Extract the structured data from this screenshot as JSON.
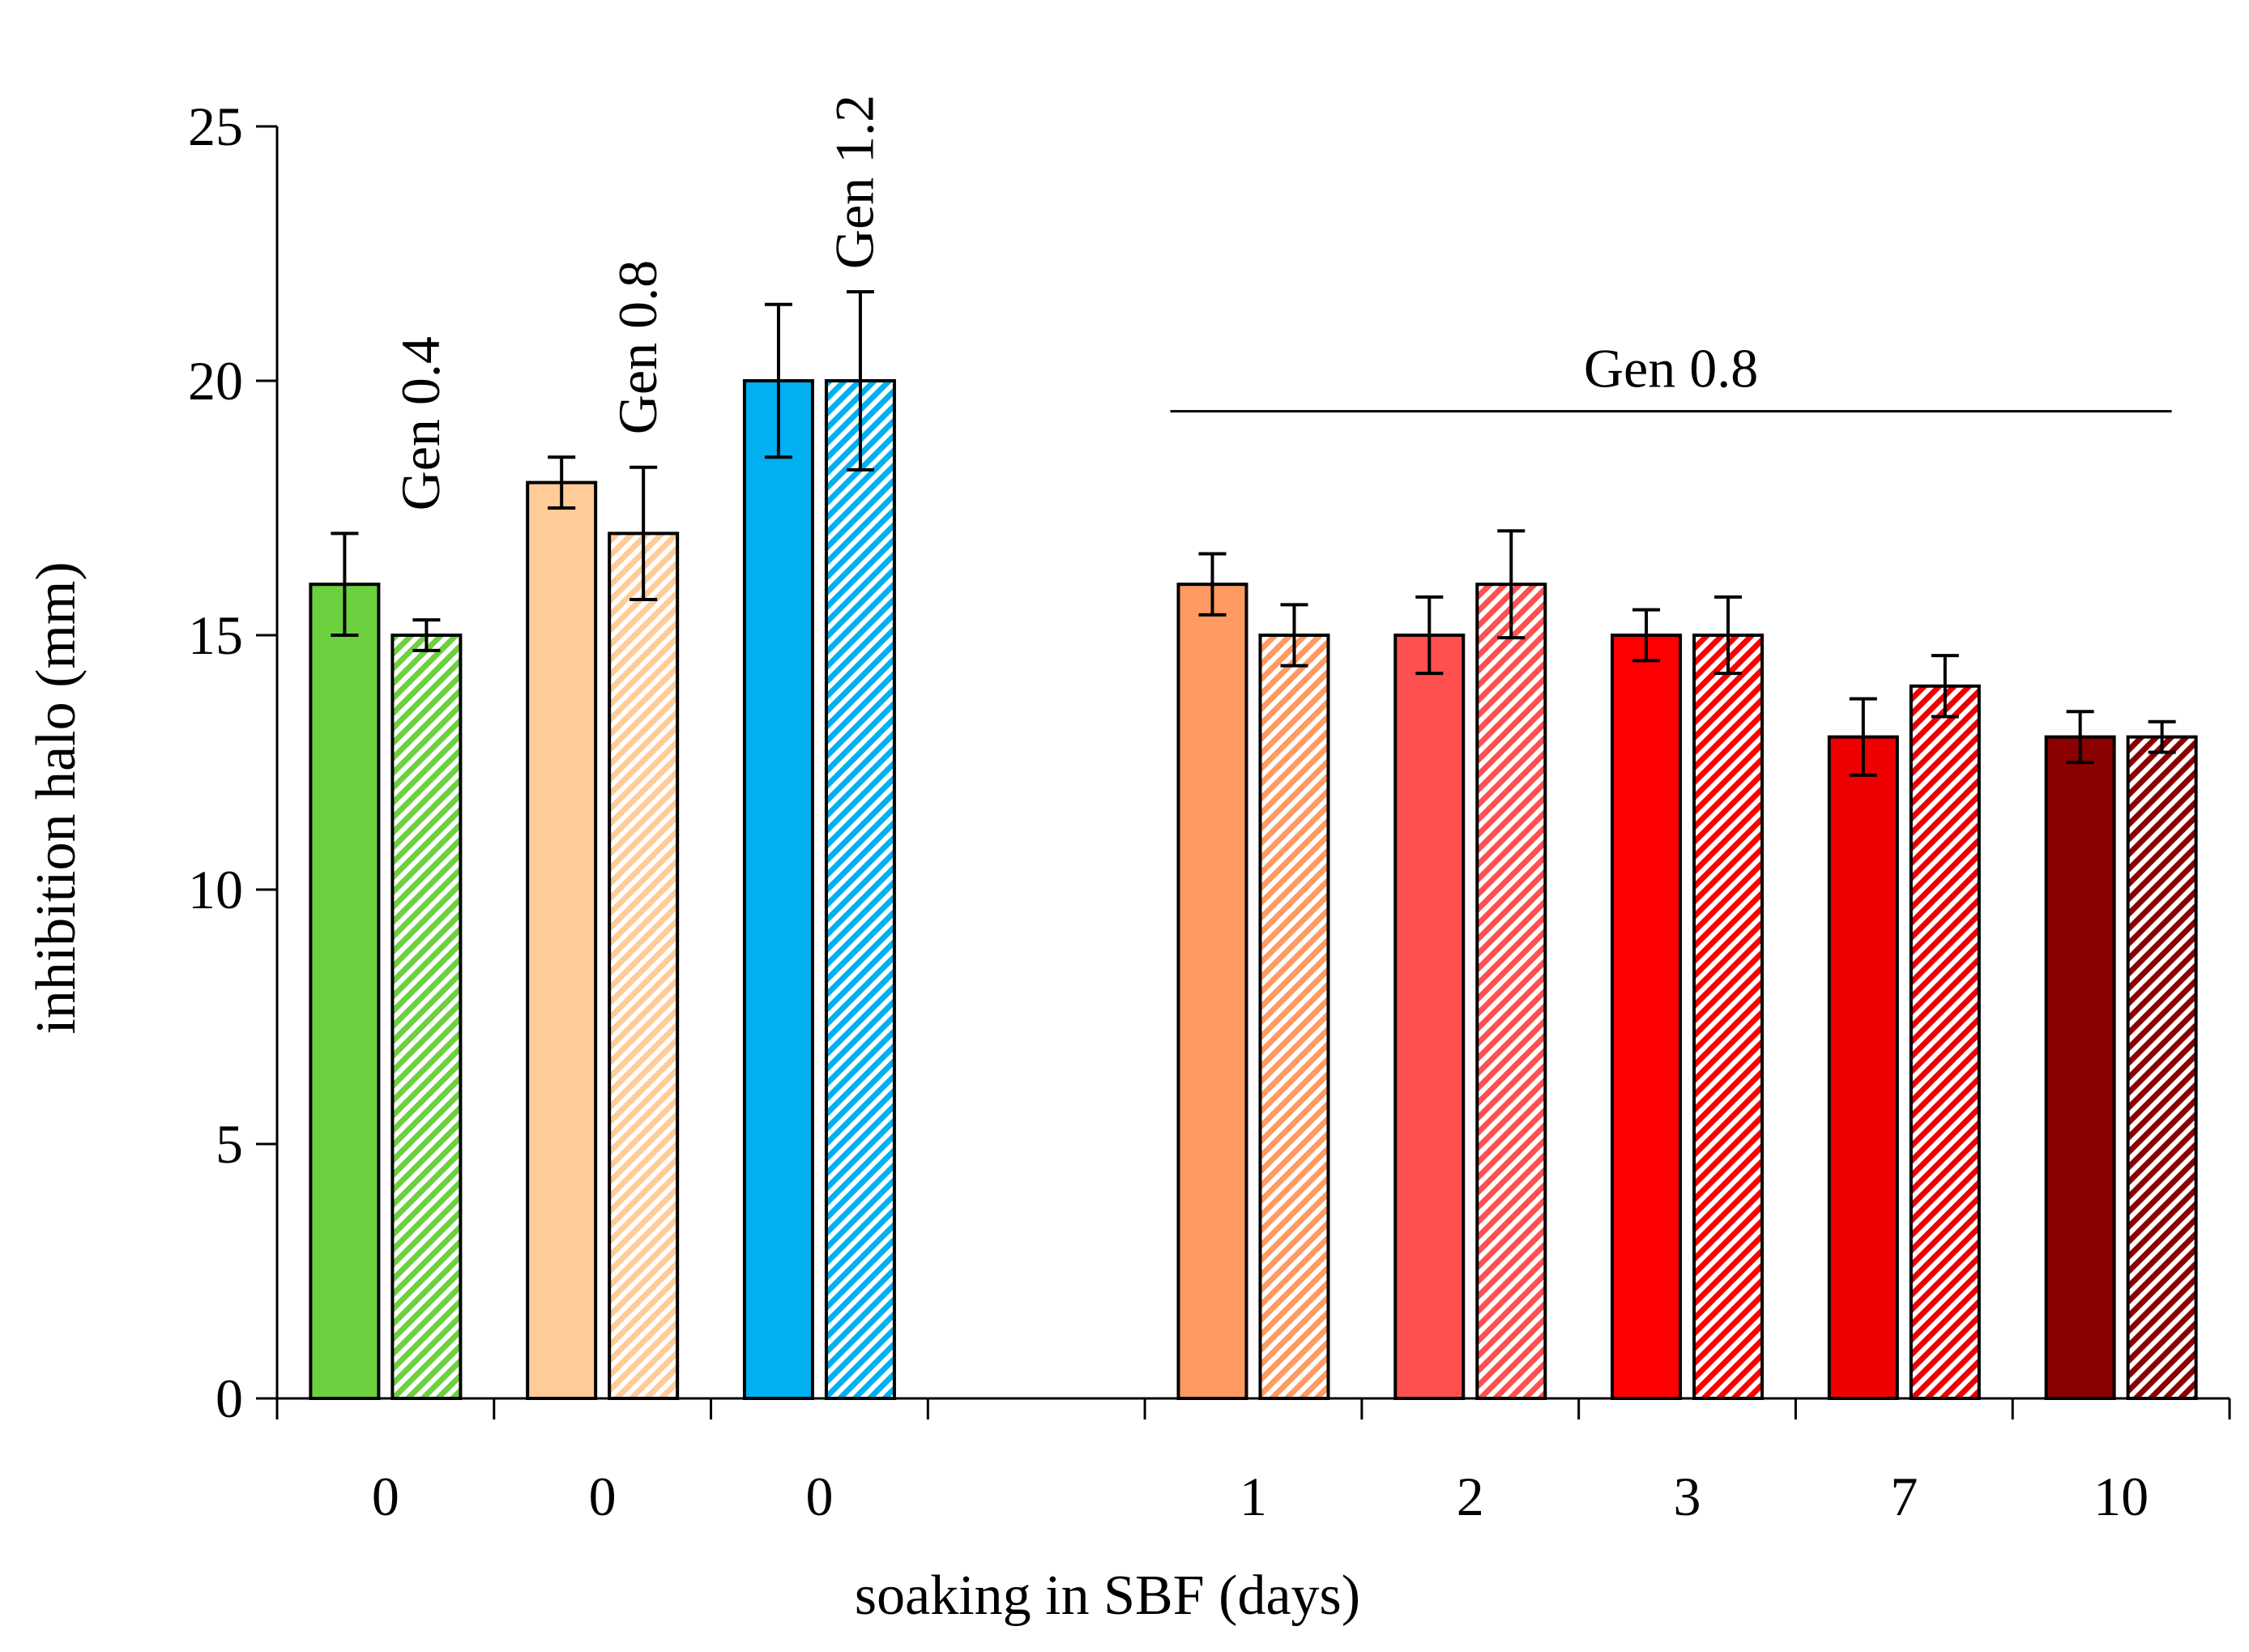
{
  "chart_data": {
    "type": "bar",
    "xlabel": "soaking in SBF (days)",
    "ylabel": "inhibition halo (mm)",
    "ylim": [
      0,
      25
    ],
    "yticks": [
      0,
      5,
      10,
      15,
      20,
      25
    ],
    "bar_fill_styles": [
      "solid",
      "hatched"
    ],
    "categories": [
      "0",
      "0",
      "0",
      "",
      "1",
      "2",
      "3",
      "7",
      "10"
    ],
    "groups": [
      {
        "category": "0",
        "label": "Gen 0.4",
        "color": "#6dd03f",
        "values": [
          16,
          15
        ],
        "errors": [
          1.0,
          0.3
        ]
      },
      {
        "category": "0",
        "label": "Gen 0.8",
        "color": "#ffcb96",
        "values": [
          18,
          17
        ],
        "errors": [
          0.5,
          1.3
        ]
      },
      {
        "category": "0",
        "label": "Gen 1.2",
        "color": "#00b0f0",
        "values": [
          20,
          20
        ],
        "errors": [
          1.5,
          1.75
        ]
      },
      {
        "category": "",
        "label": "",
        "color": "",
        "values": [],
        "errors": []
      },
      {
        "category": "1",
        "label": "",
        "color": "#ff9a62",
        "values": [
          16,
          15
        ],
        "errors": [
          0.6,
          0.6
        ]
      },
      {
        "category": "2",
        "label": "",
        "color": "#ff5050",
        "values": [
          15,
          16
        ],
        "errors": [
          0.75,
          1.05
        ]
      },
      {
        "category": "3",
        "label": "",
        "color": "#ff0000",
        "values": [
          15,
          15
        ],
        "errors": [
          0.5,
          0.75
        ]
      },
      {
        "category": "7",
        "label": "",
        "color": "#ee0000",
        "values": [
          13,
          14
        ],
        "errors": [
          0.75,
          0.6
        ]
      },
      {
        "category": "10",
        "label": "",
        "color": "#8b0000",
        "values": [
          13,
          13
        ],
        "errors": [
          0.5,
          0.3
        ]
      }
    ],
    "annotation": {
      "text": "Gen 0.8",
      "from_group": 4,
      "to_group": 8,
      "y": 19.4
    }
  }
}
